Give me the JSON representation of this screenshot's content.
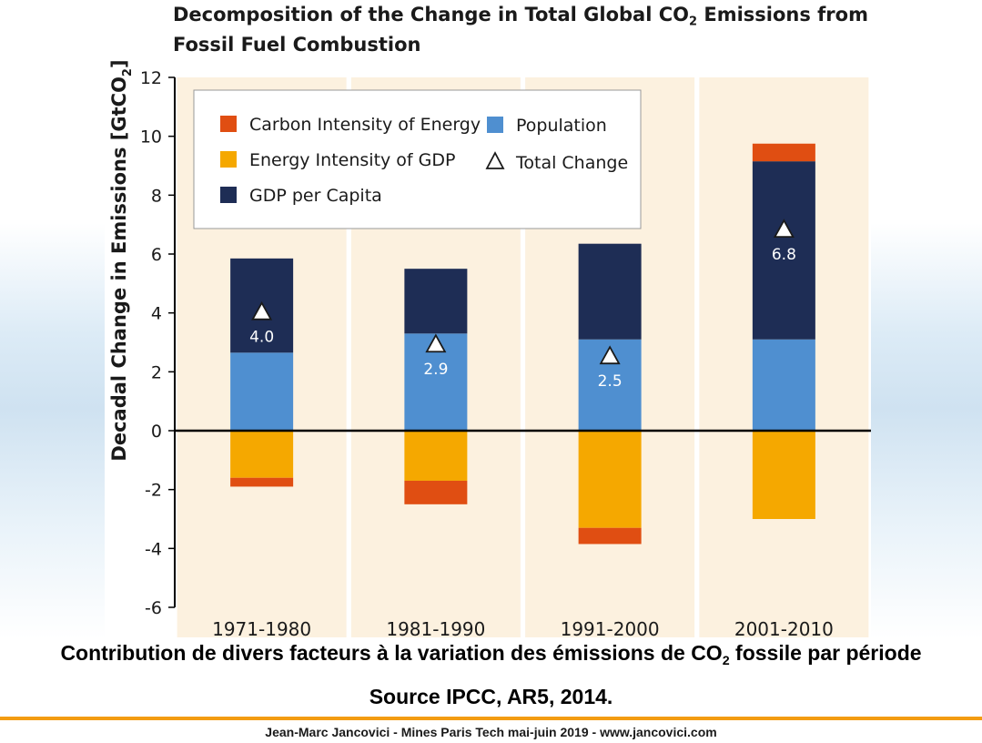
{
  "chart_data": {
    "type": "bar",
    "stacked": true,
    "title_line1_prefix": "Decomposition of the Change in Total Global CO",
    "title_sub": "2",
    "title_line1_suffix": " Emissions from",
    "title_line2": "Fossil Fuel Combustion",
    "ylabel_prefix": "Decadal Change in Emissions [GtCO",
    "ylabel_sub": "2",
    "ylabel_suffix": "]",
    "ylim": [
      -6,
      12
    ],
    "yticks": [
      "12",
      "10",
      "8",
      "6",
      "4",
      "2",
      "0",
      "-2",
      "-4",
      "-6"
    ],
    "ytick_values": [
      12,
      10,
      8,
      6,
      4,
      2,
      0,
      -2,
      -4,
      -6
    ],
    "categories": [
      "1971-1980",
      "1981-1990",
      "1991-2000",
      "2001-2010"
    ],
    "series": [
      {
        "name": "Carbon Intensity of Energy",
        "color": "#e04e12",
        "values": [
          -0.3,
          -0.8,
          -0.55,
          0.6
        ]
      },
      {
        "name": "Energy Intensity of GDP",
        "color": "#f5a800",
        "values": [
          -1.6,
          -1.7,
          -3.3,
          -3.0
        ]
      },
      {
        "name": "GDP per Capita",
        "color": "#1e2d55",
        "values": [
          3.2,
          2.2,
          3.25,
          6.05
        ]
      },
      {
        "name": "Population",
        "color": "#4f8fd0",
        "values": [
          2.65,
          3.3,
          3.1,
          3.1
        ]
      }
    ],
    "total_change": {
      "name": "Total Change",
      "values": [
        4.0,
        2.9,
        2.5,
        6.8
      ],
      "labels": [
        "4.0",
        "2.9",
        "2.5",
        "6.8"
      ]
    },
    "legend_order": [
      "Carbon Intensity of Energy",
      "Energy Intensity of GDP",
      "GDP per Capita",
      "Population",
      "Total Change"
    ],
    "legend_position": "top-left",
    "grid": false,
    "band_color": "#fcf1df"
  },
  "caption": {
    "prefix": "Contribution de divers facteurs à la variation des émissions de CO",
    "sub": "2",
    "suffix": " fossile par période"
  },
  "source": "Source IPCC, AR5, 2014.",
  "footer": "Jean-Marc Jancovici - Mines Paris Tech mai-juin 2019 - www.jancovici.com"
}
